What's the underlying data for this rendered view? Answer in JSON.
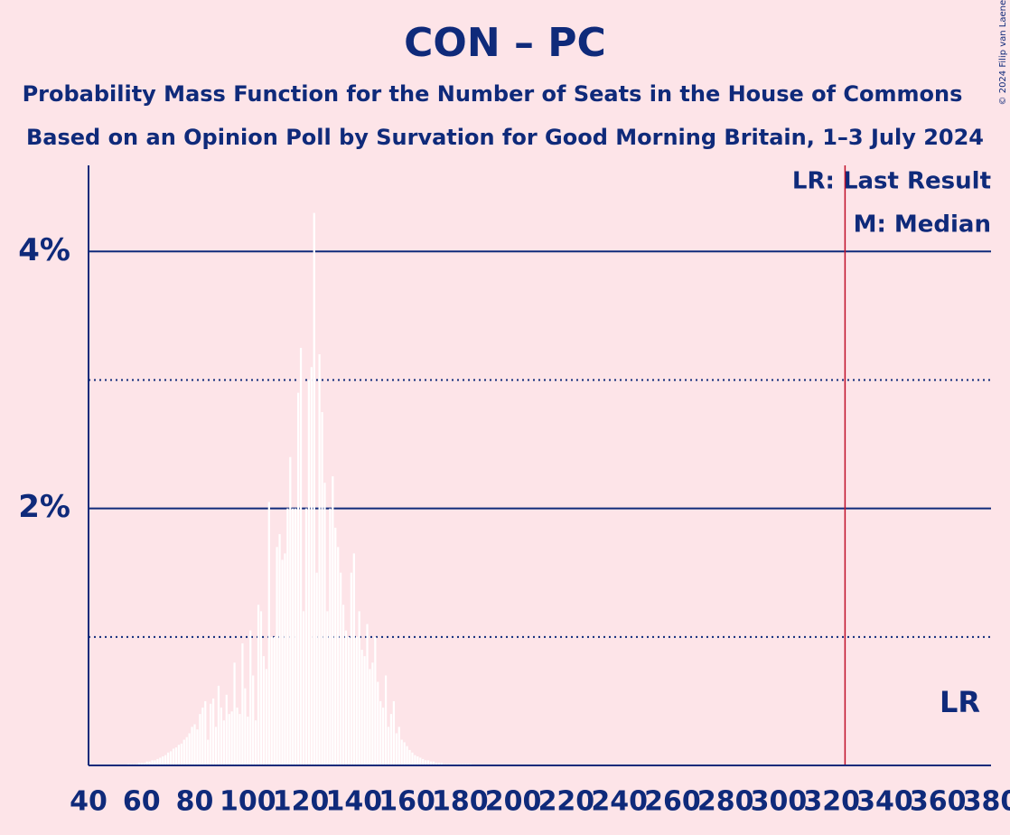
{
  "chart_data": {
    "type": "bar",
    "title": "CON – PC",
    "subtitle": "Probability Mass Function for the Number of Seats in the House of Commons",
    "subtitle2": "Based on an Opinion Poll by Survation for Good Morning Britain, 1–3 July 2024",
    "copyright": "© 2024 Filip van Laenen",
    "legend": [
      "LR: Last Result",
      "M: Median"
    ],
    "color": "#ffffff",
    "x": [
      55,
      56,
      57,
      58,
      59,
      60,
      61,
      62,
      63,
      64,
      65,
      66,
      67,
      68,
      69,
      70,
      71,
      72,
      73,
      74,
      75,
      76,
      77,
      78,
      79,
      80,
      81,
      82,
      83,
      84,
      85,
      86,
      87,
      88,
      89,
      90,
      91,
      92,
      93,
      94,
      95,
      96,
      97,
      98,
      99,
      100,
      101,
      102,
      103,
      104,
      105,
      106,
      107,
      108,
      109,
      110,
      111,
      112,
      113,
      114,
      115,
      116,
      117,
      118,
      119,
      120,
      121,
      122,
      123,
      124,
      125,
      126,
      127,
      128,
      129,
      130,
      131,
      132,
      133,
      134,
      135,
      136,
      137,
      138,
      139,
      140,
      141,
      142,
      143,
      144,
      145,
      146,
      147,
      148,
      149,
      150,
      151,
      152,
      153,
      154,
      155,
      156,
      157,
      158,
      159,
      160,
      161,
      162,
      163,
      164,
      165,
      166,
      167,
      168,
      169,
      170,
      171,
      172,
      173,
      174,
      175,
      176,
      177,
      178,
      179,
      180,
      181,
      182,
      183,
      184
    ],
    "values": [
      0.01,
      0.01,
      0.01,
      0.01,
      0.02,
      0.02,
      0.02,
      0.03,
      0.03,
      0.04,
      0.04,
      0.05,
      0.06,
      0.07,
      0.08,
      0.1,
      0.11,
      0.13,
      0.14,
      0.16,
      0.17,
      0.2,
      0.22,
      0.25,
      0.3,
      0.32,
      0.28,
      0.4,
      0.45,
      0.5,
      0.2,
      0.48,
      0.52,
      0.3,
      0.62,
      0.45,
      0.35,
      0.55,
      0.4,
      0.42,
      0.8,
      0.45,
      0.4,
      0.95,
      0.6,
      0.38,
      1.05,
      0.7,
      0.35,
      1.25,
      1.2,
      0.85,
      0.75,
      2.05,
      1.0,
      1.0,
      1.7,
      1.8,
      1.6,
      1.65,
      2.0,
      2.4,
      2.0,
      2.0,
      2.9,
      3.25,
      1.2,
      2.0,
      3.0,
      3.1,
      4.3,
      1.5,
      3.2,
      2.75,
      2.2,
      1.2,
      2.0,
      2.25,
      1.85,
      1.7,
      1.5,
      1.25,
      1.05,
      1.0,
      1.5,
      1.65,
      1.0,
      1.2,
      0.9,
      0.85,
      1.1,
      0.75,
      0.8,
      1.0,
      0.65,
      0.5,
      0.45,
      0.7,
      0.3,
      0.4,
      0.5,
      0.25,
      0.3,
      0.2,
      0.18,
      0.15,
      0.12,
      0.1,
      0.08,
      0.07,
      0.06,
      0.05,
      0.04,
      0.04,
      0.03,
      0.03,
      0.02,
      0.02,
      0.02,
      0.01,
      0.01,
      0.01,
      0.01,
      0.01,
      0.01,
      0.01,
      0.01,
      0.01,
      0.01,
      0.01
    ],
    "xlim": [
      40,
      380
    ],
    "xticks": [
      40,
      60,
      80,
      100,
      120,
      140,
      160,
      180,
      200,
      220,
      240,
      260,
      280,
      300,
      320,
      340,
      360,
      380
    ],
    "ylim": [
      0,
      4.67
    ],
    "yticks": [
      {
        "value": 2,
        "label": "2%"
      },
      {
        "value": 4,
        "label": "4%"
      }
    ],
    "minor_yticks": [
      1,
      3
    ],
    "last_result": {
      "value": 325,
      "label": "LR"
    },
    "grid": true
  }
}
